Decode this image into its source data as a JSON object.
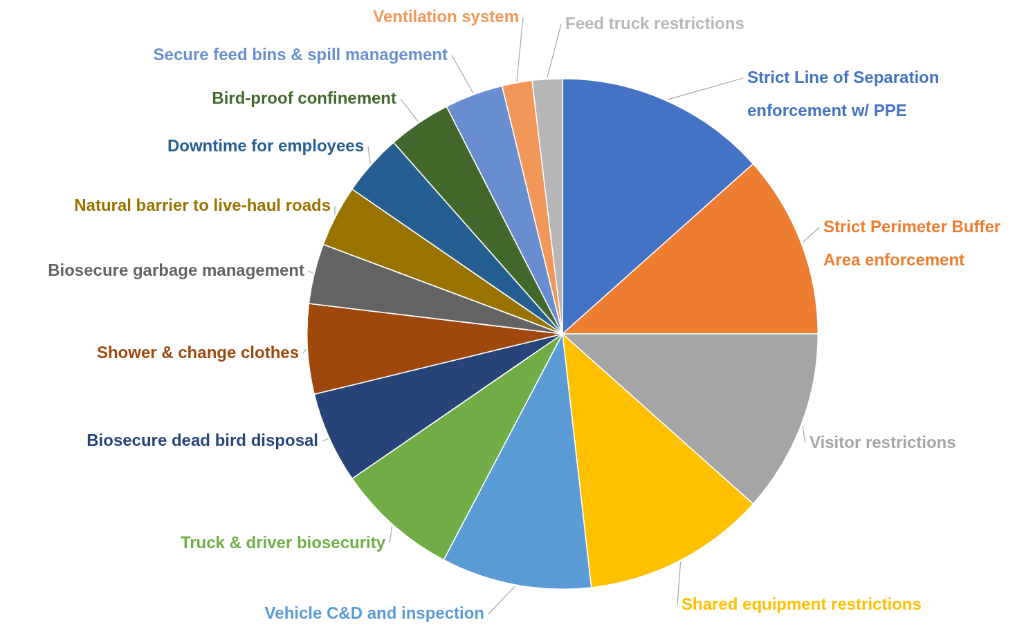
{
  "chart_data": {
    "type": "pie",
    "legend": false,
    "categories": [
      "Strict Line of Separation enforcement w/ PPE",
      "Strict Perimeter Buffer Area enforcement",
      "Visitor restrictions",
      "Shared equipment restrictions",
      "Vehicle C&D and inspection",
      "Truck & driver biosecurity",
      "Biosecure dead bird disposal",
      "Shower & change clothes",
      "Biosecure garbage management",
      "Natural barrier to live-haul roads",
      "Downtime for employees",
      "Bird-proof confinement",
      "Secure feed bins & spill management",
      "Ventilation system",
      "Feed truck restrictions"
    ],
    "values": [
      13.4,
      11.6,
      11.6,
      11.6,
      9.5,
      7.7,
      5.8,
      5.7,
      3.8,
      3.9,
      3.9,
      4.0,
      3.7,
      1.9,
      1.9
    ],
    "colors": [
      "#4472c4",
      "#ed7d31",
      "#a5a5a5",
      "#ffc000",
      "#5b9bd5",
      "#70ad47",
      "#264478",
      "#9e480e",
      "#636363",
      "#997300",
      "#255e91",
      "#43682b",
      "#698ed0",
      "#f1975a",
      "#b7b7b7"
    ]
  }
}
